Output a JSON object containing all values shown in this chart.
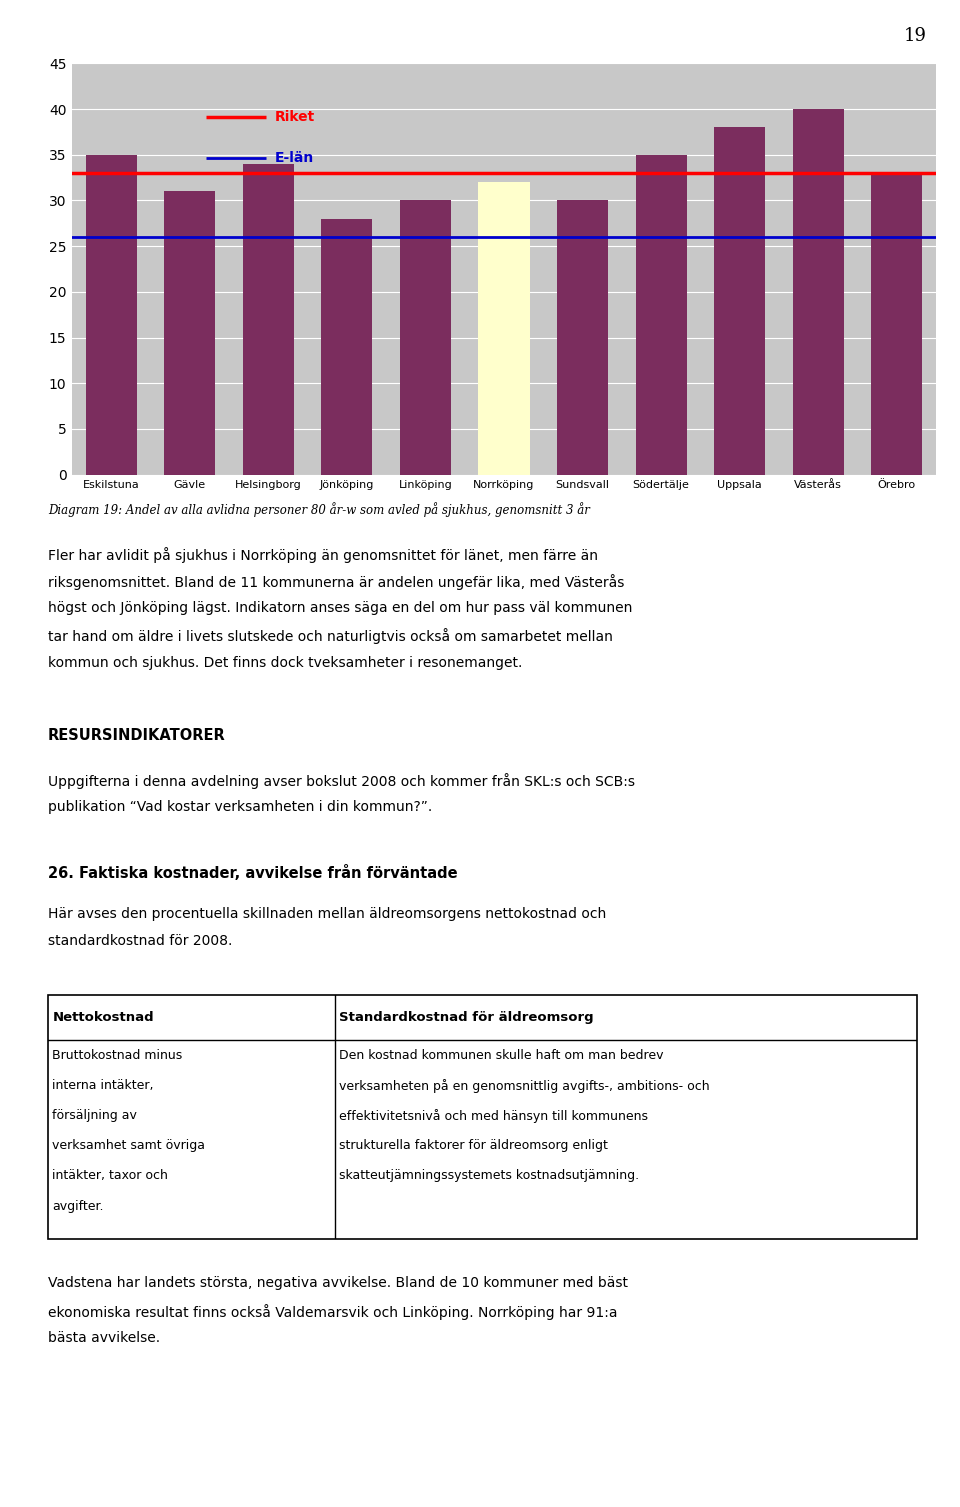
{
  "categories": [
    "Eskilstuna",
    "Gävle",
    "Helsingborg",
    "Jönköping",
    "Linköping",
    "Norrköping",
    "Sundsvall",
    "Södertälje",
    "Uppsala",
    "Västerås",
    "Örebro"
  ],
  "values": [
    35,
    31,
    34,
    28,
    30,
    32,
    30,
    35,
    38,
    40,
    33
  ],
  "bar_colors": [
    "#7B2D5E",
    "#7B2D5E",
    "#7B2D5E",
    "#7B2D5E",
    "#7B2D5E",
    "#FFFFCC",
    "#7B2D5E",
    "#7B2D5E",
    "#7B2D5E",
    "#7B2D5E",
    "#7B2D5E"
  ],
  "riket_value": 33,
  "elan_value": 26,
  "riket_color": "#FF0000",
  "elan_color": "#0000CD",
  "riket_label": "Riket",
  "elan_label": "E-län",
  "ylim": [
    0,
    45
  ],
  "yticks": [
    0,
    5,
    10,
    15,
    20,
    25,
    30,
    35,
    40,
    45
  ],
  "chart_bg": "#C8C8C8",
  "page_bg": "#FFFFFF",
  "page_number": "19",
  "caption": "Diagram 19: Andel av alla avlidna personer 80 år-w som avled på sjukhus, genomsnitt 3 år",
  "para1_line1": "Fler har avlidit på sjukhus i Norrköping än genomsnittet för länet, men färre än",
  "para1_line2": "riksgenomsnittet. Bland de 11 kommunerna är andelen ungefär lika, med Västerås",
  "para1_line3": "högst och Jönköping lägst. Indikatorn anses säga en del om hur pass väl kommunen",
  "para1_line4": "tar hand om äldre i livets slutskede och naturligtvis också om samarbetet mellan",
  "para1_line5": "kommun och sjukhus. Det finns dock tveksamheter i resonemanget.",
  "heading2": "RESURSINDIKATORER",
  "para2_line1": "Uppgifterna i denna avdelning avser bokslut 2008 och kommer från SKL:s och SCB:s",
  "para2_line2": "publikation “Vad kostar verksamheten i din kommun?”.",
  "heading3": "26. Faktiska kostnader, avvikelse från förväntade",
  "para3_line1": "Här avses den procentuella skillnaden mellan äldreomsorgens nettokostnad och",
  "para3_line2": "standardkostnad för 2008.",
  "table_col1_header": "Nettokostnad",
  "table_col2_header": "Standardkostnad för äldreomsorg",
  "table_col1_lines": [
    "Bruttokostnad minus",
    "interna intäkter,",
    "försäljning av",
    "verksamhet samt övriga",
    "intäkter, taxor och",
    "avgifter."
  ],
  "table_col2_lines": [
    "Den kostnad kommunen skulle haft om man bedrev",
    "verksamheten på en genomsnittlig avgifts-, ambitions- och",
    "effektivitetsnivå och med hänsyn till kommunens",
    "strukturella faktorer för äldreomsorg enligt",
    "skatteutjämningssystemets kostnadsutjämning."
  ],
  "para4_line1": "Vadstena har landets största, negativa avvikelse. Bland de 10 kommuner med bäst",
  "para4_line2": "ekonomiska resultat finns också Valdemarsvik och Linköping. Norrköping har 91:a",
  "para4_line3": "bästa avvikelse."
}
